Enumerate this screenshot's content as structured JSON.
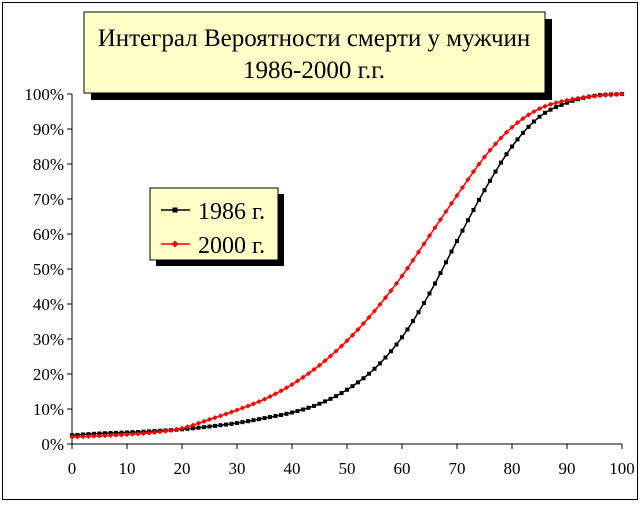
{
  "chart_data": {
    "type": "line",
    "title": "Интеграл Вероятности смерти у мужчин",
    "subtitle": "1986-2000 г.г.",
    "xlabel": "",
    "ylabel": "",
    "xlim": [
      0,
      100
    ],
    "ylim": [
      0,
      100
    ],
    "x_ticks": [
      "0",
      "10",
      "20",
      "30",
      "40",
      "50",
      "60",
      "70",
      "80",
      "90",
      "100"
    ],
    "y_ticks": [
      "0%",
      "10%",
      "20%",
      "30%",
      "40%",
      "50%",
      "60%",
      "70%",
      "80%",
      "90%",
      "100%"
    ],
    "grid": false,
    "legend_position": "left-middle",
    "series": [
      {
        "name": "1986 г.",
        "color": "#000000",
        "marker": "square",
        "x": [
          0,
          5,
          10,
          15,
          20,
          25,
          30,
          35,
          40,
          45,
          50,
          55,
          60,
          65,
          70,
          75,
          80,
          85,
          90,
          95,
          100
        ],
        "values": [
          2.5,
          3.0,
          3.3,
          3.7,
          4.2,
          5.0,
          6.0,
          7.4,
          9.0,
          11.5,
          15.5,
          21.5,
          30.5,
          43.0,
          58.0,
          72.5,
          85.0,
          93.5,
          97.5,
          99.5,
          100
        ]
      },
      {
        "name": "2000 г.",
        "color": "#ff0000",
        "marker": "diamond",
        "x": [
          0,
          5,
          10,
          15,
          20,
          25,
          30,
          35,
          40,
          45,
          50,
          55,
          60,
          65,
          70,
          75,
          80,
          85,
          90,
          95,
          100
        ],
        "values": [
          2.0,
          2.3,
          2.7,
          3.3,
          4.5,
          7.0,
          9.7,
          12.8,
          17.0,
          22.5,
          29.5,
          38.0,
          48.0,
          59.5,
          71.0,
          82.0,
          90.5,
          95.8,
          98.2,
          99.4,
          100
        ]
      }
    ]
  }
}
